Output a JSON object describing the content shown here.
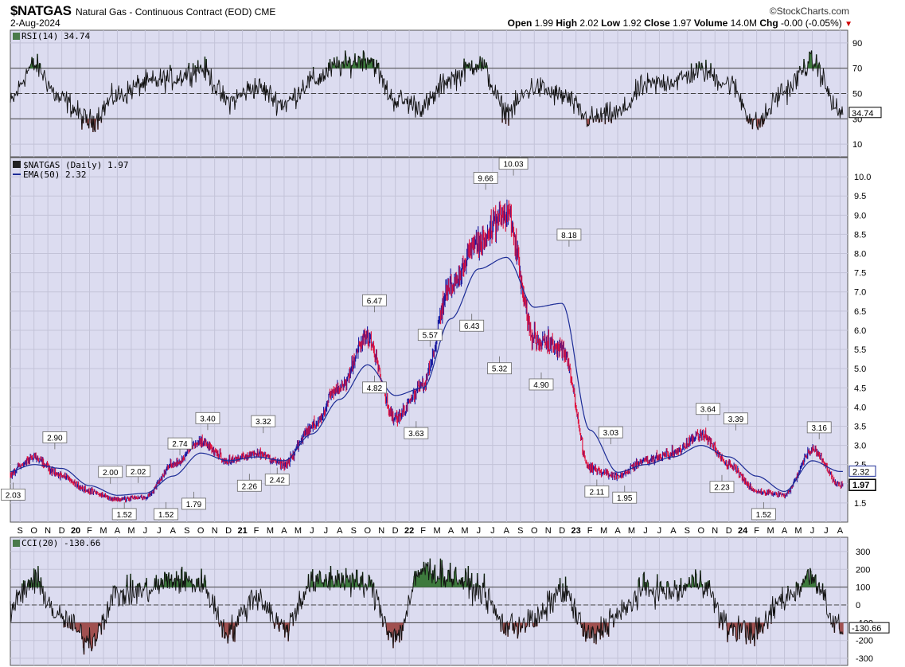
{
  "header": {
    "symbol": "$NATGAS",
    "description": "Natural Gas - Continuous Contract (EOD)",
    "exchange": "CME",
    "date": "2-Aug-2024",
    "brand": "©StockCharts.com",
    "open_label": "Open",
    "open": "1.99",
    "high_label": "High",
    "high": "2.02",
    "low_label": "Low",
    "low": "1.92",
    "close_label": "Close",
    "close": "1.97",
    "volume_label": "Volume",
    "volume": "14.0M",
    "chg_label": "Chg",
    "chg": "-0.00 (-0.05%)"
  },
  "colors": {
    "panel_bg": "#dcdcf0",
    "grid": "#c3c3d8",
    "up_bar": "#1a1aa0",
    "down_bar": "#e0103c",
    "ema": "#1c2c96",
    "overbought_fill": "#3d7a3d",
    "oversold_fill": "#a05050"
  },
  "chart_data": [
    {
      "type": "line",
      "panel": "rsi",
      "legend": "RSI(14) 34.74",
      "ylim": [
        0,
        100
      ],
      "yticks": [
        10,
        30,
        50,
        70,
        90
      ],
      "reference_lines": [
        30,
        50,
        70
      ],
      "last_value": "34.74",
      "x": [
        "2019-08",
        "2019-10",
        "2019-12",
        "2020-02",
        "2020-04",
        "2020-06",
        "2020-08",
        "2020-10",
        "2020-12",
        "2021-02",
        "2021-04",
        "2021-06",
        "2021-08",
        "2021-10",
        "2021-12",
        "2022-02",
        "2022-04",
        "2022-06",
        "2022-08",
        "2022-10",
        "2022-12",
        "2023-02",
        "2023-04",
        "2023-06",
        "2023-08",
        "2023-10",
        "2023-12",
        "2024-02",
        "2024-04",
        "2024-06",
        "2024-08"
      ],
      "values": [
        40,
        72,
        45,
        28,
        48,
        58,
        62,
        70,
        44,
        55,
        42,
        60,
        72,
        78,
        45,
        40,
        62,
        74,
        36,
        55,
        48,
        30,
        34,
        56,
        60,
        68,
        58,
        26,
        52,
        75,
        35
      ]
    },
    {
      "type": "line",
      "panel": "price",
      "legend": "$NATGAS (Daily) 1.97",
      "series": [
        {
          "name": "EMA(50) 2.32",
          "values": [
            2.3,
            2.5,
            2.4,
            1.95,
            1.7,
            1.75,
            2.2,
            2.8,
            2.6,
            2.7,
            2.6,
            3.3,
            4.2,
            5.1,
            4.3,
            4.5,
            6.3,
            7.6,
            7.9,
            6.6,
            6.7,
            3.4,
            2.3,
            2.5,
            2.7,
            3.0,
            2.7,
            2.2,
            1.8,
            2.6,
            2.32
          ]
        },
        {
          "name": "Close",
          "values": [
            2.2,
            2.7,
            2.2,
            1.8,
            1.6,
            1.65,
            2.5,
            3.1,
            2.6,
            2.8,
            2.5,
            3.5,
            4.5,
            5.8,
            3.7,
            4.6,
            7.2,
            8.3,
            9.0,
            5.8,
            5.5,
            2.4,
            2.2,
            2.6,
            2.8,
            3.3,
            2.5,
            1.8,
            1.7,
            2.9,
            1.97
          ]
        }
      ],
      "x": [
        "2019-08",
        "2019-10",
        "2019-12",
        "2020-02",
        "2020-04",
        "2020-06",
        "2020-08",
        "2020-10",
        "2020-12",
        "2021-02",
        "2021-04",
        "2021-06",
        "2021-08",
        "2021-10",
        "2021-12",
        "2022-02",
        "2022-04",
        "2022-06",
        "2022-08",
        "2022-10",
        "2022-12",
        "2023-02",
        "2023-04",
        "2023-06",
        "2023-08",
        "2023-10",
        "2023-12",
        "2024-02",
        "2024-04",
        "2024-06",
        "2024-08"
      ],
      "ylim": [
        1.0,
        10.5
      ],
      "yticks": [
        "1.5",
        "2.0",
        "2.5",
        "3.0",
        "3.5",
        "4.0",
        "4.5",
        "5.0",
        "5.5",
        "6.0",
        "6.5",
        "7.0",
        "7.5",
        "8.0",
        "8.5",
        "9.0",
        "9.5",
        "10.0"
      ],
      "last_close_tag": "1.97",
      "last_ema_tag": "2.32",
      "annotations": [
        {
          "label": "2.03",
          "x": "2019-08",
          "y": 2.03,
          "pos": "below"
        },
        {
          "label": "2.90",
          "x": "2019-11",
          "y": 2.9,
          "pos": "above"
        },
        {
          "label": "2.00",
          "x": "2020-03",
          "y": 2.0,
          "pos": "above"
        },
        {
          "label": "1.52",
          "x": "2020-04",
          "y": 1.52,
          "pos": "below"
        },
        {
          "label": "2.02",
          "x": "2020-05",
          "y": 2.02,
          "pos": "above"
        },
        {
          "label": "1.52",
          "x": "2020-07",
          "y": 1.52,
          "pos": "below"
        },
        {
          "label": "2.74",
          "x": "2020-08",
          "y": 2.74,
          "pos": "above"
        },
        {
          "label": "1.79",
          "x": "2020-09",
          "y": 1.79,
          "pos": "below"
        },
        {
          "label": "3.40",
          "x": "2020-10",
          "y": 3.4,
          "pos": "above"
        },
        {
          "label": "2.26",
          "x": "2021-01",
          "y": 2.26,
          "pos": "below"
        },
        {
          "label": "3.32",
          "x": "2021-02",
          "y": 3.32,
          "pos": "above"
        },
        {
          "label": "2.42",
          "x": "2021-03",
          "y": 2.42,
          "pos": "below"
        },
        {
          "label": "6.47",
          "x": "2021-10",
          "y": 6.47,
          "pos": "above"
        },
        {
          "label": "4.82",
          "x": "2021-10",
          "y": 4.82,
          "pos": "below"
        },
        {
          "label": "3.63",
          "x": "2022-01",
          "y": 3.63,
          "pos": "below"
        },
        {
          "label": "5.57",
          "x": "2022-02",
          "y": 5.57,
          "pos": "above"
        },
        {
          "label": "6.43",
          "x": "2022-05",
          "y": 6.43,
          "pos": "below"
        },
        {
          "label": "9.66",
          "x": "2022-06",
          "y": 9.66,
          "pos": "above"
        },
        {
          "label": "5.32",
          "x": "2022-07",
          "y": 5.32,
          "pos": "below"
        },
        {
          "label": "10.03",
          "x": "2022-08",
          "y": 10.03,
          "pos": "above"
        },
        {
          "label": "4.90",
          "x": "2022-10",
          "y": 4.9,
          "pos": "below"
        },
        {
          "label": "8.18",
          "x": "2022-12",
          "y": 8.18,
          "pos": "above"
        },
        {
          "label": "2.11",
          "x": "2023-02",
          "y": 2.11,
          "pos": "below"
        },
        {
          "label": "3.03",
          "x": "2023-03",
          "y": 3.03,
          "pos": "above"
        },
        {
          "label": "1.95",
          "x": "2023-04",
          "y": 1.95,
          "pos": "below"
        },
        {
          "label": "3.64",
          "x": "2023-10",
          "y": 3.64,
          "pos": "above"
        },
        {
          "label": "2.23",
          "x": "2023-11",
          "y": 2.23,
          "pos": "below"
        },
        {
          "label": "3.39",
          "x": "2023-12",
          "y": 3.39,
          "pos": "above"
        },
        {
          "label": "1.52",
          "x": "2024-02",
          "y": 1.52,
          "pos": "below"
        },
        {
          "label": "3.16",
          "x": "2024-06",
          "y": 3.16,
          "pos": "above"
        }
      ]
    },
    {
      "type": "line",
      "panel": "cci",
      "legend": "CCI(20) -130.66",
      "ylim": [
        -340,
        380
      ],
      "yticks": [
        "300",
        "200",
        "100",
        "0",
        "-100",
        "-200",
        "-300"
      ],
      "reference_lines": [
        -100,
        0,
        100
      ],
      "last_value": "-130.66",
      "x": [
        "2019-08",
        "2019-10",
        "2019-12",
        "2020-02",
        "2020-04",
        "2020-06",
        "2020-08",
        "2020-10",
        "2020-12",
        "2021-02",
        "2021-04",
        "2021-06",
        "2021-08",
        "2021-10",
        "2021-12",
        "2022-02",
        "2022-04",
        "2022-06",
        "2022-08",
        "2022-10",
        "2022-12",
        "2023-02",
        "2023-04",
        "2023-06",
        "2023-08",
        "2023-10",
        "2023-12",
        "2024-02",
        "2024-04",
        "2024-06",
        "2024-08"
      ],
      "values": [
        -40,
        130,
        -80,
        -200,
        60,
        80,
        140,
        120,
        -150,
        50,
        -130,
        120,
        150,
        110,
        -180,
        200,
        160,
        90,
        -120,
        -90,
        80,
        -180,
        -60,
        90,
        70,
        140,
        -130,
        -150,
        40,
        160,
        -131
      ]
    }
  ],
  "xaxis": {
    "labels": [
      {
        "t": "S",
        "m": "2019-09"
      },
      {
        "t": "O",
        "m": "2019-10"
      },
      {
        "t": "N",
        "m": "2019-11"
      },
      {
        "t": "D",
        "m": "2019-12"
      },
      {
        "t": "20",
        "m": "2020-01",
        "year": true
      },
      {
        "t": "F",
        "m": "2020-02"
      },
      {
        "t": "M",
        "m": "2020-03"
      },
      {
        "t": "A",
        "m": "2020-04"
      },
      {
        "t": "M",
        "m": "2020-05"
      },
      {
        "t": "J",
        "m": "2020-06"
      },
      {
        "t": "J",
        "m": "2020-07"
      },
      {
        "t": "A",
        "m": "2020-08"
      },
      {
        "t": "S",
        "m": "2020-09"
      },
      {
        "t": "O",
        "m": "2020-10"
      },
      {
        "t": "N",
        "m": "2020-11"
      },
      {
        "t": "D",
        "m": "2020-12"
      },
      {
        "t": "21",
        "m": "2021-01",
        "year": true
      },
      {
        "t": "F",
        "m": "2021-02"
      },
      {
        "t": "M",
        "m": "2021-03"
      },
      {
        "t": "A",
        "m": "2021-04"
      },
      {
        "t": "M",
        "m": "2021-05"
      },
      {
        "t": "J",
        "m": "2021-06"
      },
      {
        "t": "J",
        "m": "2021-07"
      },
      {
        "t": "A",
        "m": "2021-08"
      },
      {
        "t": "S",
        "m": "2021-09"
      },
      {
        "t": "O",
        "m": "2021-10"
      },
      {
        "t": "N",
        "m": "2021-11"
      },
      {
        "t": "D",
        "m": "2021-12"
      },
      {
        "t": "22",
        "m": "2022-01",
        "year": true
      },
      {
        "t": "F",
        "m": "2022-02"
      },
      {
        "t": "M",
        "m": "2022-03"
      },
      {
        "t": "A",
        "m": "2022-04"
      },
      {
        "t": "M",
        "m": "2022-05"
      },
      {
        "t": "J",
        "m": "2022-06"
      },
      {
        "t": "J",
        "m": "2022-07"
      },
      {
        "t": "A",
        "m": "2022-08"
      },
      {
        "t": "S",
        "m": "2022-09"
      },
      {
        "t": "O",
        "m": "2022-10"
      },
      {
        "t": "N",
        "m": "2022-11"
      },
      {
        "t": "D",
        "m": "2022-12"
      },
      {
        "t": "23",
        "m": "2023-01",
        "year": true
      },
      {
        "t": "F",
        "m": "2023-02"
      },
      {
        "t": "M",
        "m": "2023-03"
      },
      {
        "t": "A",
        "m": "2023-04"
      },
      {
        "t": "M",
        "m": "2023-05"
      },
      {
        "t": "J",
        "m": "2023-06"
      },
      {
        "t": "J",
        "m": "2023-07"
      },
      {
        "t": "A",
        "m": "2023-08"
      },
      {
        "t": "S",
        "m": "2023-09"
      },
      {
        "t": "O",
        "m": "2023-10"
      },
      {
        "t": "N",
        "m": "2023-11"
      },
      {
        "t": "D",
        "m": "2023-12"
      },
      {
        "t": "24",
        "m": "2024-01",
        "year": true
      },
      {
        "t": "F",
        "m": "2024-02"
      },
      {
        "t": "M",
        "m": "2024-03"
      },
      {
        "t": "A",
        "m": "2024-04"
      },
      {
        "t": "M",
        "m": "2024-05"
      },
      {
        "t": "J",
        "m": "2024-06"
      },
      {
        "t": "J",
        "m": "2024-07"
      },
      {
        "t": "A",
        "m": "2024-08"
      }
    ]
  }
}
